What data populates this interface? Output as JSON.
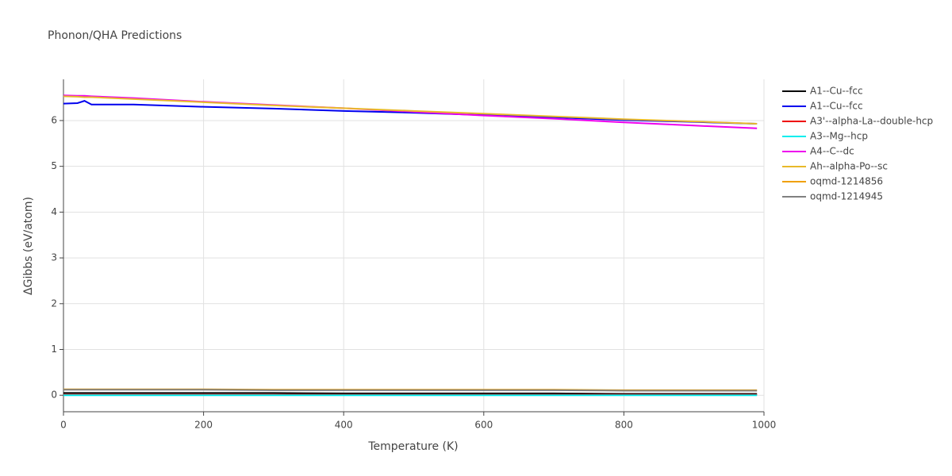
{
  "chart_data": {
    "type": "line",
    "title": "Phonon/QHA Predictions",
    "x_label": "Temperature (K)",
    "y_label": "ΔGibbs (eV/atom)",
    "x": [
      0,
      20,
      30,
      40,
      100,
      200,
      300,
      400,
      500,
      600,
      700,
      800,
      900,
      990
    ],
    "xlim": [
      0,
      1000
    ],
    "xticks": [
      0,
      200,
      400,
      600,
      800,
      1000
    ],
    "ylim": [
      -0.36,
      6.9
    ],
    "yticks": [
      0,
      1,
      2,
      3,
      4,
      5,
      6
    ],
    "grid": true,
    "legend": "right",
    "series": [
      {
        "name": "A1--Cu--fcc",
        "color": "#000000",
        "values": [
          0.05,
          0.05,
          0.05,
          0.05,
          0.05,
          0.05,
          0.05,
          0.04,
          0.04,
          0.04,
          0.04,
          0.03,
          0.03,
          0.03
        ]
      },
      {
        "name": "A1--Cu--fcc",
        "color": "#0000ee",
        "values": [
          6.37,
          6.38,
          6.43,
          6.35,
          6.35,
          6.3,
          6.26,
          6.21,
          6.17,
          6.12,
          6.07,
          6.01,
          5.97,
          5.93
        ]
      },
      {
        "name": "A3'--alpha-La--double-hcp",
        "color": "#ee0000",
        "values": [
          0.01,
          0.01,
          0.01,
          0.01,
          0.01,
          0.01,
          0.01,
          0.01,
          0.01,
          0.01,
          0.01,
          0.01,
          0.01,
          0.01
        ]
      },
      {
        "name": "A3--Mg--hcp",
        "color": "#00eeee",
        "values": [
          0,
          0,
          0,
          0,
          0,
          0,
          0,
          0,
          0,
          0,
          0,
          0,
          0,
          0
        ]
      },
      {
        "name": "A4--C--dc",
        "color": "#ee00ee",
        "values": [
          6.55,
          6.54,
          6.54,
          6.53,
          6.49,
          6.41,
          6.34,
          6.27,
          6.19,
          6.11,
          6.04,
          5.96,
          5.89,
          5.83
        ]
      },
      {
        "name": "Ah--alpha-Po--sc",
        "color": "#e8b92a",
        "values": [
          6.53,
          6.52,
          6.51,
          6.51,
          6.47,
          6.4,
          6.33,
          6.27,
          6.21,
          6.15,
          6.09,
          6.03,
          5.98,
          5.93
        ]
      },
      {
        "name": "oqmd-1214856",
        "color": "#f0a000",
        "values": [
          0.13,
          0.13,
          0.13,
          0.13,
          0.13,
          0.13,
          0.12,
          0.12,
          0.12,
          0.12,
          0.12,
          0.11,
          0.11,
          0.11
        ]
      },
      {
        "name": "oqmd-1214945",
        "color": "#808080",
        "values": [
          0.12,
          0.12,
          0.12,
          0.12,
          0.12,
          0.12,
          0.11,
          0.11,
          0.11,
          0.11,
          0.11,
          0.1,
          0.1,
          0.1
        ]
      }
    ]
  }
}
